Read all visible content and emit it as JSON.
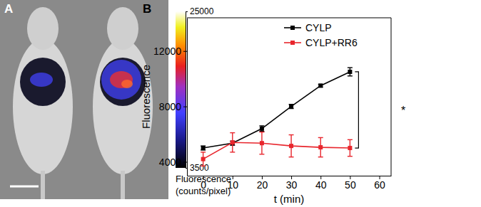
{
  "chart_data": [
    {
      "type": "image",
      "title": "A",
      "colorbar": {
        "label": [
          "Fluorescence",
          "(counts/pixel)"
        ],
        "range": [
          3500,
          25000
        ],
        "ticks": [
          3500,
          25000
        ]
      }
    },
    {
      "type": "line",
      "title": "B",
      "x_label": "t (min)",
      "y_label": "Fluorescence",
      "x": [
        0,
        10,
        20,
        30,
        40,
        50
      ],
      "xlim": [
        -5.5,
        64
      ],
      "xticks": [
        0,
        10,
        20,
        30,
        40,
        50,
        60
      ],
      "ylim": [
        3000,
        14400
      ],
      "yticks": [
        4000,
        8000,
        12000
      ],
      "legend": "upper right",
      "marker": "square",
      "line_style": "solid",
      "annotations": [
        "*"
      ],
      "series": [
        {
          "name": "CYLP",
          "color": "#000000",
          "values": [
            5000,
            5350,
            6400,
            8000,
            9500,
            10500
          ],
          "errors": [
            150,
            150,
            200,
            150,
            100,
            300
          ]
        },
        {
          "name": "CYLP+RR6",
          "color": "#e8262d",
          "values": [
            4200,
            5400,
            5350,
            5150,
            5050,
            5000
          ],
          "errors": [
            500,
            700,
            800,
            800,
            700,
            600
          ]
        }
      ]
    }
  ]
}
